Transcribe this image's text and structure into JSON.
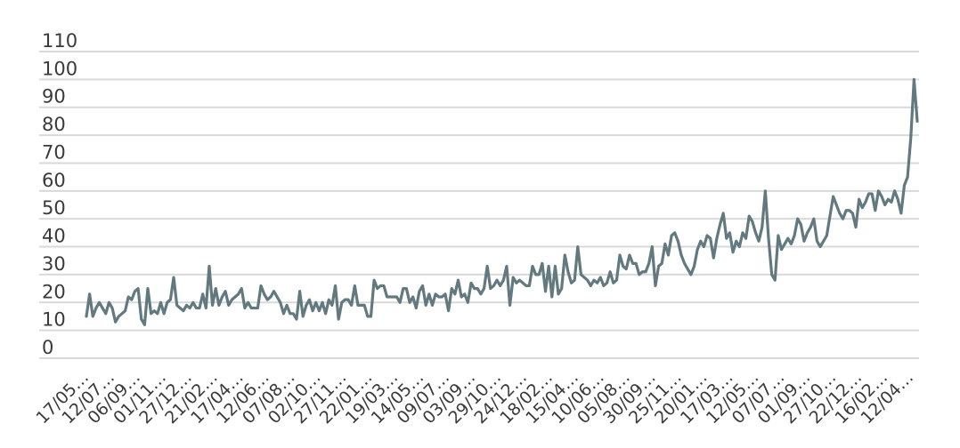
{
  "chart_data": {
    "type": "line",
    "title": "",
    "xlabel": "",
    "ylabel": "",
    "ylim": [
      0,
      110
    ],
    "yticks": [
      0,
      10,
      20,
      30,
      40,
      50,
      60,
      70,
      80,
      90,
      100,
      110
    ],
    "grid": true,
    "legend": "none",
    "colors": {
      "line": "#627a7f",
      "grid": "#d9d9d9",
      "text": "#3a3a3a"
    },
    "x_tick_labels": [
      "17/05…",
      "12/07…",
      "06/09…",
      "01/11…",
      "27/12…",
      "21/02…",
      "17/04…",
      "12/06…",
      "07/08…",
      "02/10…",
      "27/11…",
      "22/01…",
      "19/03…",
      "14/05…",
      "09/07…",
      "03/09…",
      "29/10…",
      "24/12…",
      "18/02…",
      "15/04…",
      "10/06…",
      "05/08…",
      "30/09…",
      "25/11…",
      "20/01…",
      "17/03…",
      "12/05…",
      "07/07…",
      "01/09…",
      "27/10…",
      "22/12…",
      "16/02…",
      "12/04…"
    ],
    "series": [
      {
        "color": "#627a7f",
        "values": [
          15,
          23,
          15,
          18,
          20,
          18,
          16,
          20,
          18,
          13,
          15,
          16,
          17,
          22,
          21,
          24,
          25,
          14,
          12,
          25,
          16,
          17,
          16,
          20,
          16,
          20,
          21,
          29,
          19,
          18,
          17,
          19,
          18,
          20,
          18,
          18,
          23,
          18,
          33,
          19,
          25,
          19,
          22,
          24,
          19,
          21,
          22,
          23,
          25,
          18,
          20,
          18,
          18,
          18,
          26,
          23,
          21,
          22,
          24,
          22,
          20,
          16,
          19,
          16,
          16,
          14,
          24,
          15,
          19,
          21,
          17,
          20,
          17,
          20,
          16,
          21,
          19,
          26,
          14,
          20,
          21,
          21,
          19,
          26,
          19,
          19,
          19,
          15,
          15,
          28,
          25,
          26,
          26,
          22,
          22,
          22,
          22,
          20,
          25,
          25,
          20,
          22,
          18,
          24,
          26,
          19,
          23,
          19,
          23,
          22,
          22,
          23,
          17,
          25,
          23,
          28,
          22,
          23,
          20,
          27,
          25,
          25,
          23,
          25,
          33,
          25,
          26,
          28,
          26,
          28,
          33,
          19,
          29,
          27,
          28,
          27,
          26,
          26,
          33,
          30,
          30,
          34,
          24,
          33,
          22,
          33,
          23,
          25,
          37,
          31,
          27,
          28,
          40,
          30,
          29,
          28,
          26,
          28,
          27,
          29,
          26,
          27,
          31,
          27,
          28,
          37,
          33,
          32,
          37,
          34,
          34,
          30,
          31,
          31,
          34,
          40,
          26,
          33,
          34,
          41,
          37,
          44,
          45,
          42,
          37,
          34,
          32,
          30,
          33,
          39,
          42,
          40,
          44,
          43,
          36,
          43,
          48,
          52,
          43,
          45,
          38,
          42,
          40,
          45,
          43,
          51,
          49,
          45,
          42,
          47,
          60,
          43,
          30,
          28,
          44,
          39,
          41,
          43,
          41,
          44,
          50,
          48,
          42,
          45,
          47,
          50,
          42,
          40,
          42,
          44,
          51,
          58,
          55,
          52,
          50,
          53,
          53,
          52,
          47,
          57,
          54,
          56,
          59,
          59,
          53,
          60,
          58,
          55,
          57,
          56,
          60,
          57,
          52,
          62,
          65,
          79,
          100,
          85
        ]
      }
    ]
  }
}
